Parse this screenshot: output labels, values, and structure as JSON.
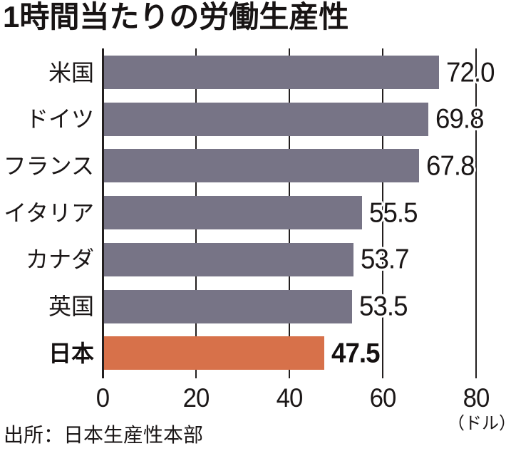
{
  "chart_data": {
    "type": "bar",
    "orientation": "horizontal",
    "title": "1時間当たりの労働生産性",
    "categories": [
      "米国",
      "ドイツ",
      "フランス",
      "イタリア",
      "カナダ",
      "英国",
      "日本"
    ],
    "values": [
      72.0,
      69.8,
      67.8,
      55.5,
      53.7,
      53.5,
      47.5
    ],
    "value_labels": [
      "72.0",
      "69.8",
      "67.8",
      "55.5",
      "53.7",
      "53.5",
      "47.5"
    ],
    "highlight_index": 6,
    "highlight_category": "日本",
    "xlim": [
      0,
      80
    ],
    "x_ticks": [
      0,
      20,
      40,
      60,
      80
    ],
    "x_tick_labels": [
      "0",
      "20",
      "40",
      "60",
      "80"
    ],
    "unit_label": "（ドル）",
    "source": "出所：日本生産性本部",
    "legend": "none",
    "grid": "vertical solid lines at ticks, behind bars",
    "colors": {
      "bar_default": "#777486",
      "bar_highlight": "#d7714a",
      "line": "#231f1f",
      "text": "#1b1717",
      "background": "#ffffff"
    }
  }
}
